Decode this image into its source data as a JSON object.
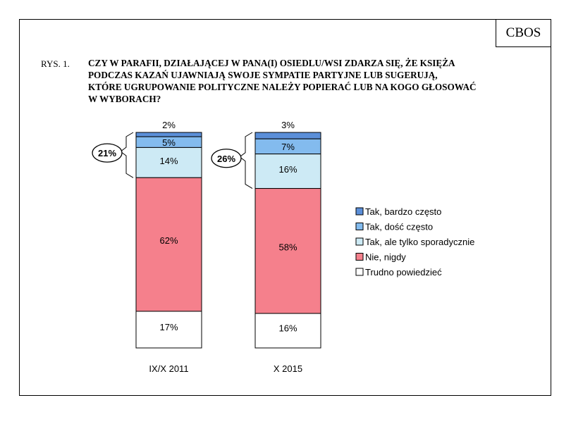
{
  "header": {
    "brand": "CBOS",
    "figure_label": "RYS. 1.",
    "title_lines": [
      "CZY W PARAFII, DZIAŁAJĄCEJ W PANA(I) OSIEDLU/WSI ZDARZA SIĘ, ŻE KSIĘŻA",
      "PODCZAS KAZAŃ UJAWNIAJĄ SWOJE SYMPATIE PARTYJNE LUB SUGERUJĄ,",
      "KTÓRE UGRUPOWANIE POLITYCZNE NALEŻY POPIERAĆ LUB NA KOGO GŁOSOWAĆ",
      "W WYBORACH?"
    ]
  },
  "chart_data": {
    "type": "bar",
    "stacked": true,
    "orientation": "vertical",
    "categories": [
      "IX/X 2011",
      "X 2015"
    ],
    "series": [
      {
        "name": "Tak, bardzo często",
        "values": [
          2,
          3
        ],
        "labels": [
          "2%",
          "3%"
        ],
        "color": "#5b8fd9"
      },
      {
        "name": "Tak, dość często",
        "values": [
          5,
          7
        ],
        "labels": [
          "5%",
          "7%"
        ],
        "color": "#83bbee"
      },
      {
        "name": "Tak, ale tylko sporadycznie",
        "values": [
          14,
          16
        ],
        "labels": [
          "14%",
          "16%"
        ],
        "color": "#cdeaf5"
      },
      {
        "name": "Nie, nigdy",
        "values": [
          62,
          58
        ],
        "labels": [
          "62%",
          "58%"
        ],
        "color": "#f5808c"
      },
      {
        "name": "Trudno powiedzieć",
        "values": [
          17,
          16
        ],
        "labels": [
          "17%",
          "16%"
        ],
        "color": "#ffffff"
      }
    ],
    "group_totals": [
      {
        "value": 21,
        "label": "21%"
      },
      {
        "value": 26,
        "label": "26%"
      }
    ],
    "legend_position": "right",
    "grid": false
  }
}
